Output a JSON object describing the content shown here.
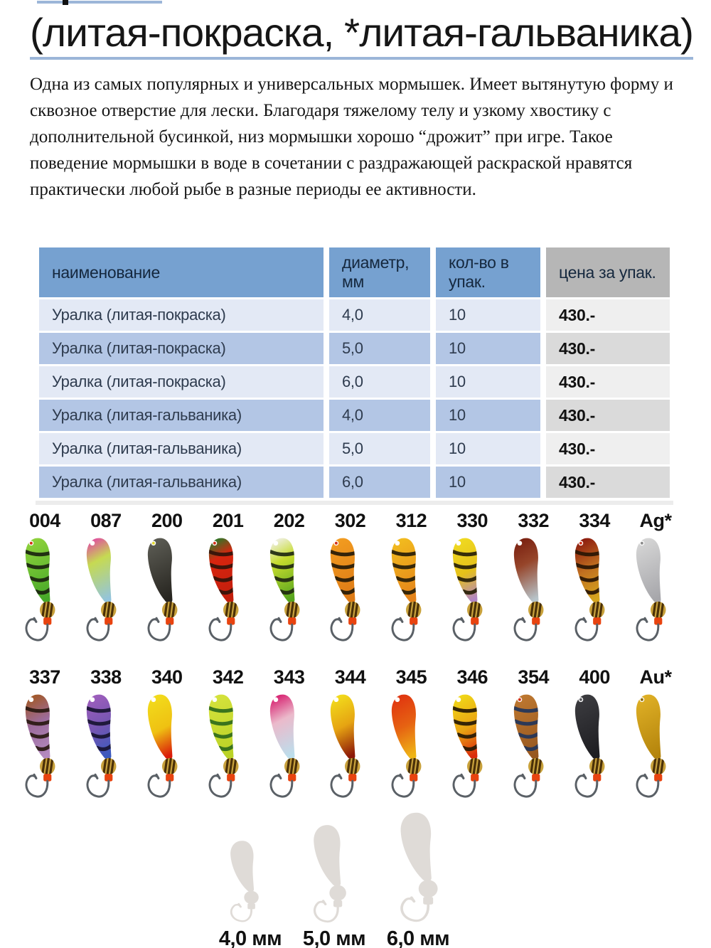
{
  "title": "(литая-покраска, *литая-гальваника)",
  "description": "Одна из самых популярных и универсальных мормышек. Имеет вытянутую форму и сквозное отверстие для лески. Благодаря тяжелому телу и узкому хвостику  с дополнительной бусинкой, низ мормышки хорошо “дрожит” при игре. Такое поведение мормышки в воде в сочетании с  раздражающей раскраской нравятся практически любой рыбе в разные периоды ее активности.",
  "table": {
    "headers": [
      "наименование",
      "диаметр, мм",
      "кол-во в упак.",
      "цена за упак."
    ],
    "rows": [
      {
        "name": "Уралка (литая-покраска)",
        "diameter": "4,0",
        "qty": "10",
        "price": "430.-"
      },
      {
        "name": "Уралка (литая-покраска)",
        "diameter": "5,0",
        "qty": "10",
        "price": "430.-"
      },
      {
        "name": "Уралка (литая-покраска)",
        "diameter": "6,0",
        "qty": "10",
        "price": "430.-"
      },
      {
        "name": "Уралка (литая-гальваника)",
        "diameter": "4,0",
        "qty": "10",
        "price": "430.-"
      },
      {
        "name": "Уралка (литая-гальваника)",
        "diameter": "5,0",
        "qty": "10",
        "price": "430.-"
      },
      {
        "name": "Уралка (литая-гальваника)",
        "diameter": "6,0",
        "qty": "10",
        "price": "430.-"
      }
    ]
  },
  "lures": {
    "row1": [
      {
        "code": "004",
        "colors": [
          "#8FD23C",
          "#46A828"
        ],
        "stripes": "#1B2410",
        "eye": "#D23018"
      },
      {
        "code": "087",
        "colors": [
          "#E0519E",
          "#C6DA52",
          "#93C4DC"
        ],
        "offsets": [
          0,
          0.35,
          1
        ],
        "stripes": null,
        "eye": "#FFFFFF"
      },
      {
        "code": "200",
        "colors": [
          "#5C5C54",
          "#26241F"
        ],
        "stripes": null,
        "eye": "#E2D830"
      },
      {
        "code": "201",
        "colors": [
          "#2C7828",
          "#D8250F",
          "#C21E0C"
        ],
        "offsets": [
          0,
          0.3,
          1
        ],
        "stripes": "#33140A",
        "eye": "#D23018"
      },
      {
        "code": "202",
        "colors": [
          "#EFEFE2",
          "#C6DC2E",
          "#55A41E"
        ],
        "offsets": [
          0,
          0.35,
          1
        ],
        "stripes": "#202A12",
        "eye": "#FFFFFF"
      },
      {
        "code": "302",
        "colors": [
          "#F29C20",
          "#DD7A16"
        ],
        "stripes": "#251B08",
        "eye": "#D23018"
      },
      {
        "code": "312",
        "colors": [
          "#F2BC1E",
          "#E4821A"
        ],
        "stripes": "#281E08",
        "eye": "#FFFFFF"
      },
      {
        "code": "330",
        "colors": [
          "#F0DA20",
          "#E5C01A",
          "#B286C4"
        ],
        "offsets": [
          0,
          0.55,
          1
        ],
        "stripes": "#282008",
        "eye": "#FFFFFF"
      },
      {
        "code": "332",
        "colors": [
          "#7A2010",
          "#96452A",
          "#B7C4CA"
        ],
        "offsets": [
          0,
          0.4,
          1
        ],
        "stripes": null,
        "eye": "#FFFFFF"
      },
      {
        "code": "334",
        "colors": [
          "#8C1A0E",
          "#C07020",
          "#D6A51E"
        ],
        "offsets": [
          0,
          0.5,
          1
        ],
        "stripes": "#2A1605",
        "eye": "#D23018"
      },
      {
        "code": "Ag*",
        "colors": [
          "#D6D6D6",
          "#A6A6AA"
        ],
        "stripes": null,
        "eye": "#8C8C8C"
      }
    ],
    "row2": [
      {
        "code": "337",
        "colors": [
          "#A25826",
          "#9C6C9C",
          "#B48AC0"
        ],
        "offsets": [
          0,
          0.45,
          1
        ],
        "stripes": "#2A1A12",
        "eye": "#FFFFFF"
      },
      {
        "code": "338",
        "colors": [
          "#9E5EBC",
          "#7656B2",
          "#3A59BE"
        ],
        "offsets": [
          0,
          0.5,
          1
        ],
        "stripes": "#181432",
        "eye": "#FFFFFF"
      },
      {
        "code": "340",
        "colors": [
          "#F2DC1C",
          "#EFC112",
          "#DA1C0A"
        ],
        "offsets": [
          0,
          0.55,
          1
        ],
        "stripes": null,
        "eye": "#FFFFFF"
      },
      {
        "code": "342",
        "colors": [
          "#D5E23C",
          "#BAD226"
        ],
        "stripes": "#2F6B1C",
        "eye": "#FFFFFF"
      },
      {
        "code": "343",
        "colors": [
          "#D72070",
          "#EBBACB",
          "#BCDEEC"
        ],
        "offsets": [
          0,
          0.4,
          1
        ],
        "stripes": null,
        "eye": "#FFFFFF"
      },
      {
        "code": "344",
        "colors": [
          "#F2DC1C",
          "#E6A412",
          "#8C1808"
        ],
        "offsets": [
          0,
          0.5,
          1
        ],
        "stripes": null,
        "eye": "#FFFFFF"
      },
      {
        "code": "345",
        "colors": [
          "#E03410",
          "#E66212",
          "#EFB616"
        ],
        "offsets": [
          0,
          0.5,
          1
        ],
        "stripes": null,
        "eye": "#FFFFFF"
      },
      {
        "code": "346",
        "colors": [
          "#F0D818",
          "#EAA212",
          "#DA2A0C"
        ],
        "offsets": [
          0,
          0.55,
          1
        ],
        "stripes": "#261A06",
        "eye": "#FFFFFF"
      },
      {
        "code": "354",
        "colors": [
          "#BE7830",
          "#965720"
        ],
        "stripes": "#22365C",
        "eye": "#D23018"
      },
      {
        "code": "400",
        "colors": [
          "#3C3C40",
          "#1D1D21"
        ],
        "stripes": null,
        "eye": "#5A5A5E"
      },
      {
        "code": "Au*",
        "colors": [
          "#DFB026",
          "#B4840C"
        ],
        "stripes": null,
        "eye": "#8A6A10"
      }
    ]
  },
  "sizes": {
    "labels": [
      "4,0 мм",
      "5,0 мм",
      "6,0 мм"
    ]
  },
  "theme": {
    "underline_blue": "#9CB6D8",
    "header_blue": "#76A1D0",
    "header_gray": "#B6B6B6",
    "row_light": "#E3E9F5",
    "row_medium": "#B3C6E5",
    "price_light": "#EFEFEF",
    "price_medium": "#DADADA",
    "bead_gold": "#C9A23C",
    "bead_stripe": "#4A3008",
    "bead_red": "#E8430F",
    "hook_gray": "#5A6066",
    "silhouette_gray": "#DFDBD7"
  }
}
